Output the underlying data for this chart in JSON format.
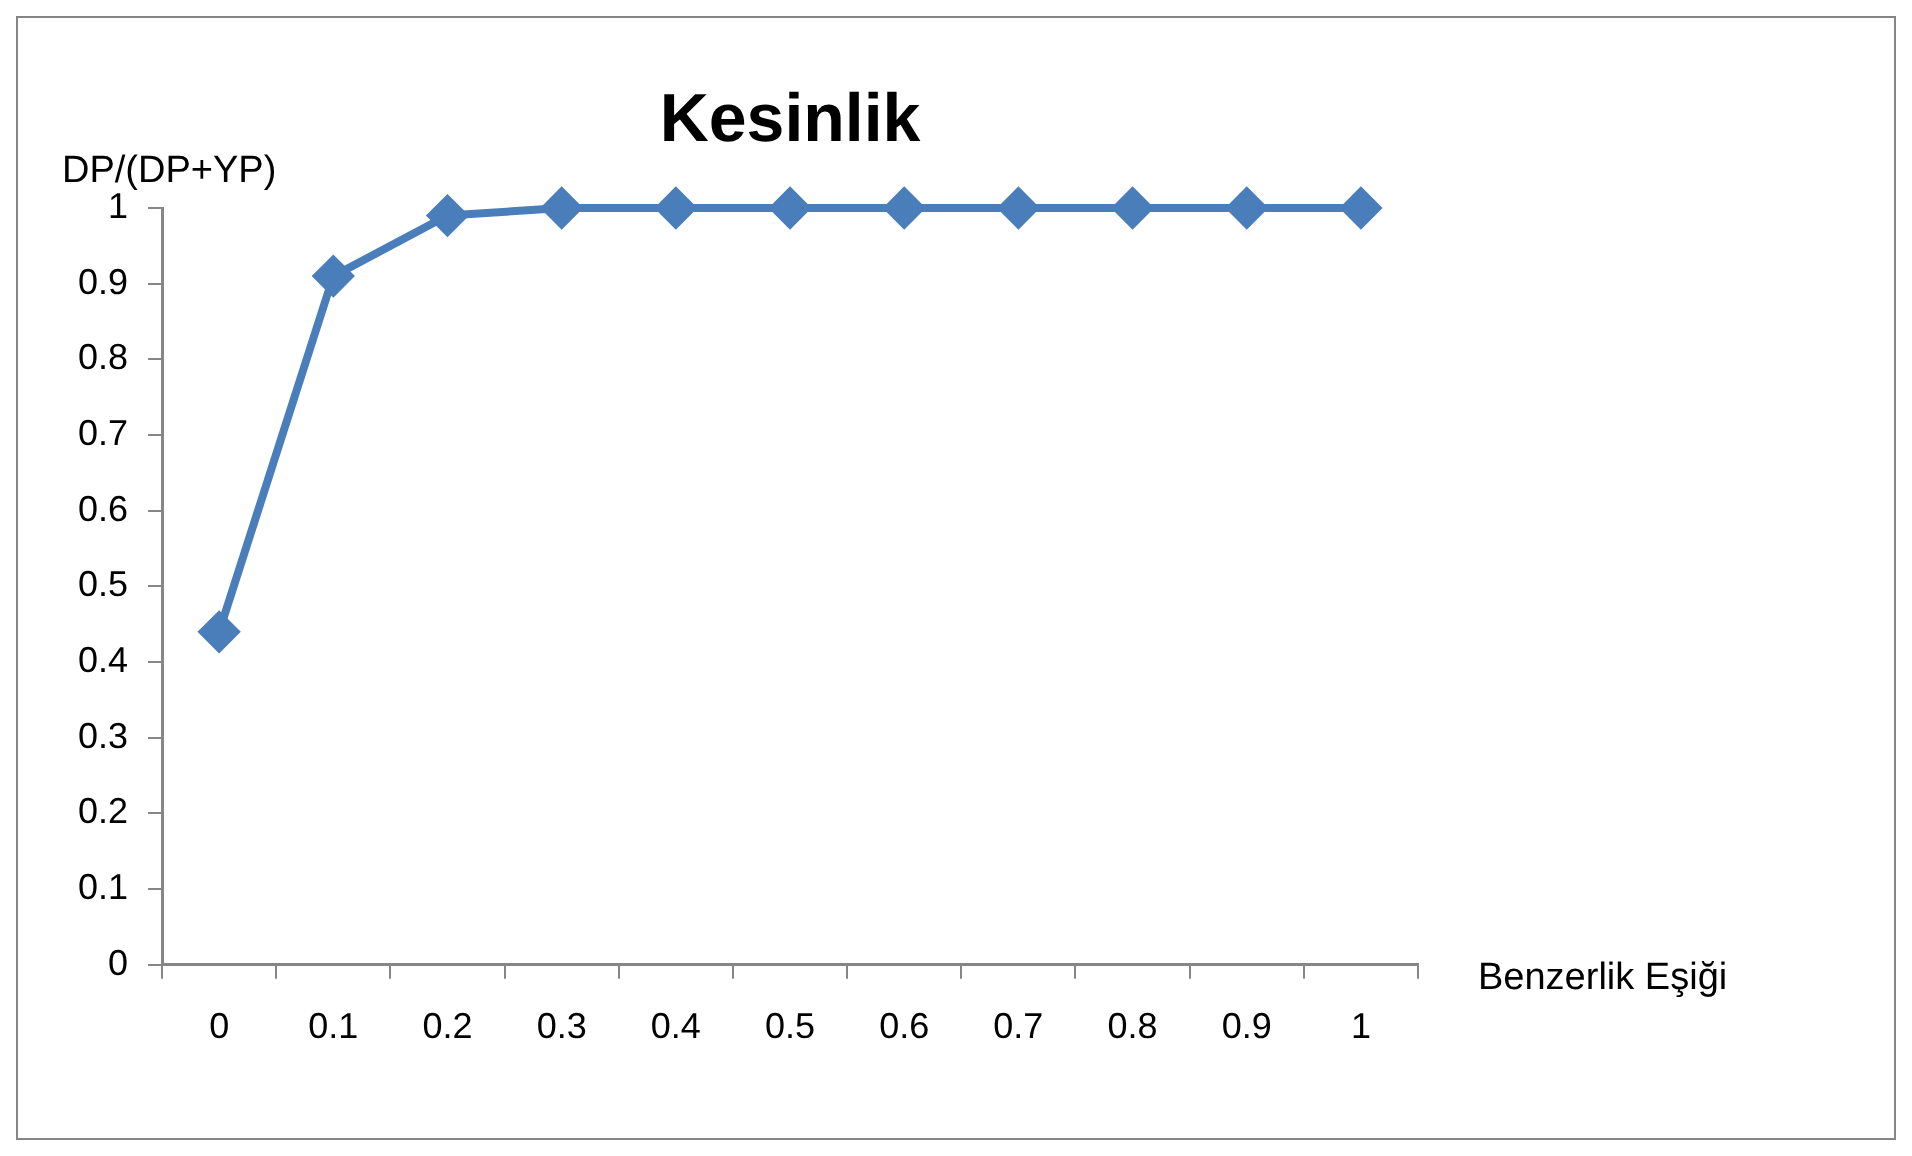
{
  "chart_data": {
    "type": "line",
    "title": "Kesinlik",
    "xlabel": "Benzerlik Eşiği",
    "ylabel": "DP/(DP+YP)",
    "categories": [
      "0",
      "0.1",
      "0.2",
      "0.3",
      "0.4",
      "0.5",
      "0.6",
      "0.7",
      "0.8",
      "0.9",
      "1"
    ],
    "series": [
      {
        "color": "#4a7ebb",
        "values": [
          0.44,
          0.91,
          0.99,
          1,
          1,
          1,
          1,
          1,
          1,
          1,
          1
        ]
      }
    ],
    "ylim": [
      0,
      1
    ],
    "yticks": [
      0,
      0.1,
      0.2,
      0.3,
      0.4,
      0.5,
      0.6,
      0.7,
      0.8,
      0.9,
      1
    ],
    "grid": false,
    "legend": false,
    "marker": "diamond",
    "line_style": "solid"
  }
}
